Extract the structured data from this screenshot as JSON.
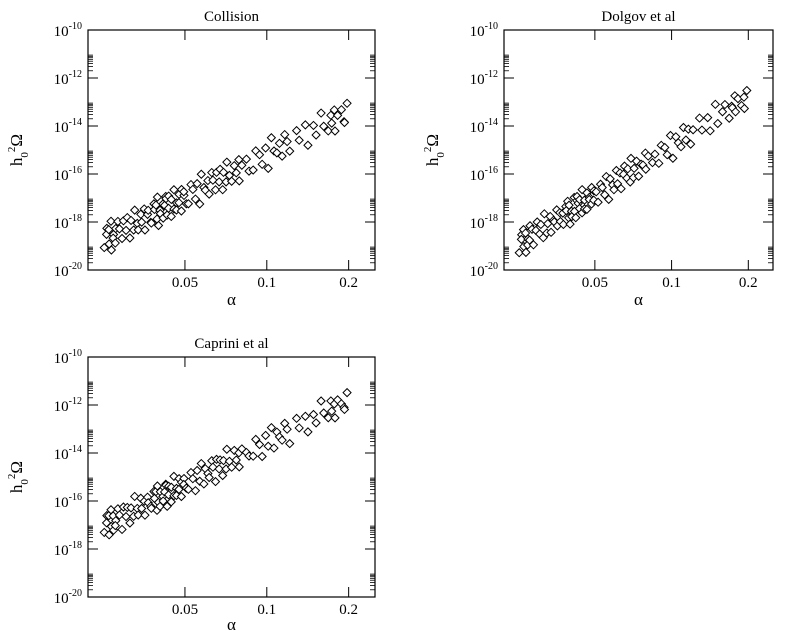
{
  "chart_data": [
    {
      "type": "scatter",
      "title": "Collision",
      "xlabel": "α",
      "ylabel": {
        "base": "h",
        "sub": "0",
        "sup": "2",
        "tail": "Ω"
      },
      "xscale": "log",
      "yscale": "log",
      "xlim": [
        0.022,
        0.25
      ],
      "ylim": [
        1e-20,
        1e-10
      ],
      "xticks": [
        {
          "value": 0.05,
          "label": "0.05"
        },
        {
          "value": 0.1,
          "label": "0.1"
        },
        {
          "value": 0.2,
          "label": "0.2"
        }
      ],
      "yticks": [
        {
          "exp": -20,
          "base": "10",
          "sup": "-20"
        },
        {
          "exp": -18,
          "base": "10",
          "sup": "-18"
        },
        {
          "exp": -16,
          "base": "10",
          "sup": "-16"
        },
        {
          "exp": -14,
          "base": "10",
          "sup": "-14"
        },
        {
          "exp": -12,
          "base": "10",
          "sup": "-12"
        },
        {
          "exp": -10,
          "base": "10",
          "sup": "-10"
        }
      ],
      "fit": {
        "log_y_at_0_03": -18.3,
        "slope_decades_per_decade_x": 5.9
      },
      "scatter_logy": [
        -0.35,
        0.45,
        0.15,
        -0.25,
        0.3,
        -0.55,
        0.6,
        0.05,
        -0.15,
        0.25,
        -0.4,
        0.5,
        0.1,
        -0.3,
        0.35,
        -0.05,
        0.4,
        -0.45,
        0.2,
        -0.2,
        0.55,
        0.0,
        -0.35,
        0.3,
        -0.1,
        0.45,
        -0.5,
        0.15,
        0.25,
        -0.25
      ],
      "x_points": [
        0.0255,
        0.026,
        0.0265,
        0.027,
        0.0275,
        0.028,
        0.029,
        0.03,
        0.031,
        0.032,
        0.033,
        0.034,
        0.035,
        0.036,
        0.037,
        0.038,
        0.039,
        0.0395,
        0.04,
        0.041,
        0.042,
        0.0425,
        0.043,
        0.044,
        0.045,
        0.046,
        0.047,
        0.048,
        0.049,
        0.05,
        0.052,
        0.054,
        0.056,
        0.058,
        0.06,
        0.062,
        0.064,
        0.066,
        0.068,
        0.07,
        0.072,
        0.075,
        0.078,
        0.08,
        0.085,
        0.09,
        0.095,
        0.1,
        0.105,
        0.11,
        0.115,
        0.12,
        0.13,
        0.14,
        0.15,
        0.16,
        0.17,
        0.175,
        0.18,
        0.19,
        0.195
      ]
    },
    {
      "type": "scatter",
      "title": "Dolgov et al",
      "xlabel": "α",
      "ylabel": {
        "base": "h",
        "sub": "0",
        "sup": "2",
        "tail": "Ω"
      },
      "xscale": "log",
      "yscale": "log",
      "xlim": [
        0.022,
        0.25
      ],
      "ylim": [
        1e-20,
        1e-10
      ],
      "xticks": [
        {
          "value": 0.05,
          "label": "0.05"
        },
        {
          "value": 0.1,
          "label": "0.1"
        },
        {
          "value": 0.2,
          "label": "0.2"
        }
      ],
      "yticks": [
        {
          "exp": -20,
          "base": "10",
          "sup": "-20"
        },
        {
          "exp": -18,
          "base": "10",
          "sup": "-18"
        },
        {
          "exp": -16,
          "base": "10",
          "sup": "-16"
        },
        {
          "exp": -14,
          "base": "10",
          "sup": "-14"
        },
        {
          "exp": -12,
          "base": "10",
          "sup": "-12"
        },
        {
          "exp": -10,
          "base": "10",
          "sup": "-10"
        }
      ],
      "fit": {
        "log_y_at_0_03": -18.4,
        "slope_decades_per_decade_x": 6.8
      },
      "scatter_logy": [
        -0.4,
        0.35,
        0.1,
        -0.2,
        0.45,
        -0.5,
        0.25,
        0.0,
        -0.3,
        0.5,
        -0.15,
        0.3,
        -0.45,
        0.15,
        0.4,
        -0.1,
        0.2,
        -0.35,
        0.55,
        -0.25,
        0.05,
        0.35,
        -0.4,
        0.1,
        -0.05,
        0.45,
        -0.3,
        0.25,
        -0.2,
        0.15
      ],
      "x_points": [
        0.0255,
        0.026,
        0.0265,
        0.027,
        0.0275,
        0.028,
        0.029,
        0.03,
        0.031,
        0.032,
        0.033,
        0.034,
        0.035,
        0.036,
        0.037,
        0.038,
        0.039,
        0.0395,
        0.04,
        0.041,
        0.042,
        0.0425,
        0.043,
        0.044,
        0.045,
        0.046,
        0.047,
        0.048,
        0.049,
        0.05,
        0.052,
        0.054,
        0.056,
        0.058,
        0.06,
        0.062,
        0.064,
        0.066,
        0.068,
        0.07,
        0.072,
        0.075,
        0.078,
        0.08,
        0.085,
        0.09,
        0.095,
        0.1,
        0.105,
        0.11,
        0.115,
        0.12,
        0.13,
        0.14,
        0.15,
        0.16,
        0.17,
        0.175,
        0.18,
        0.19,
        0.195
      ]
    },
    {
      "type": "scatter",
      "title": "Caprini et al",
      "xlabel": "α",
      "ylabel": {
        "base": "h",
        "sub": "0",
        "sup": "2",
        "tail": "Ω"
      },
      "xscale": "log",
      "yscale": "log",
      "xlim": [
        0.022,
        0.25
      ],
      "ylim": [
        1e-20,
        1e-10
      ],
      "xticks": [
        {
          "value": 0.05,
          "label": "0.05"
        },
        {
          "value": 0.1,
          "label": "0.1"
        },
        {
          "value": 0.2,
          "label": "0.2"
        }
      ],
      "yticks": [
        {
          "exp": -20,
          "base": "10",
          "sup": "-20"
        },
        {
          "exp": -18,
          "base": "10",
          "sup": "-18"
        },
        {
          "exp": -16,
          "base": "10",
          "sup": "-16"
        },
        {
          "exp": -14,
          "base": "10",
          "sup": "-14"
        },
        {
          "exp": -12,
          "base": "10",
          "sup": "-12"
        },
        {
          "exp": -10,
          "base": "10",
          "sup": "-10"
        }
      ],
      "fit": {
        "log_y_at_0_03": -16.6,
        "slope_decades_per_decade_x": 5.8
      },
      "scatter_logy": [
        -0.3,
        0.4,
        0.05,
        -0.45,
        0.3,
        -0.15,
        0.5,
        -0.35,
        0.2,
        0.0,
        -0.25,
        0.45,
        0.1,
        -0.5,
        0.35,
        -0.05,
        0.25,
        -0.4,
        0.15,
        -0.2,
        0.55,
        0.05,
        -0.3,
        0.4,
        -0.1,
        0.2,
        -0.45,
        0.3,
        0.0,
        -0.15
      ],
      "x_points": [
        0.0255,
        0.026,
        0.0265,
        0.027,
        0.0275,
        0.028,
        0.029,
        0.03,
        0.031,
        0.032,
        0.033,
        0.034,
        0.035,
        0.036,
        0.037,
        0.038,
        0.039,
        0.0395,
        0.04,
        0.041,
        0.042,
        0.0425,
        0.043,
        0.044,
        0.045,
        0.046,
        0.047,
        0.048,
        0.049,
        0.05,
        0.052,
        0.054,
        0.056,
        0.058,
        0.06,
        0.062,
        0.064,
        0.066,
        0.068,
        0.07,
        0.072,
        0.075,
        0.078,
        0.08,
        0.085,
        0.09,
        0.095,
        0.1,
        0.105,
        0.11,
        0.115,
        0.12,
        0.13,
        0.14,
        0.15,
        0.16,
        0.17,
        0.175,
        0.18,
        0.19,
        0.195
      ]
    }
  ]
}
